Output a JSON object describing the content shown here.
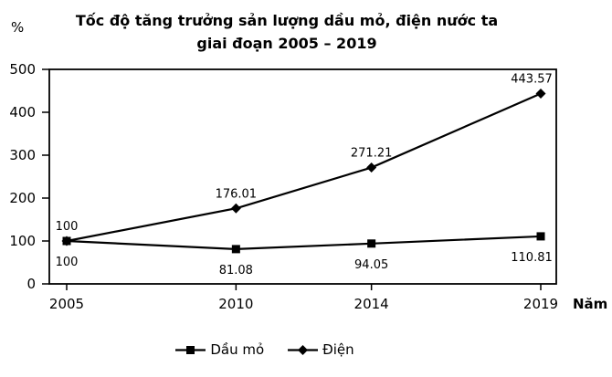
{
  "chart_data": {
    "type": "line",
    "title": "Tốc độ tăng trưởng sản lượng dầu mỏ, điện nước ta giai đoạn 2005 – 2019",
    "title_lines": [
      "Tốc độ tăng trưởng sản lượng dầu mỏ, điện nước ta",
      "giai đoạn 2005 – 2019"
    ],
    "y_axis_unit_label": "%",
    "x_axis_label": "Năm",
    "x": [
      2005,
      2010,
      2014,
      2019
    ],
    "ylim": [
      0,
      500
    ],
    "yticks": [
      0,
      100,
      200,
      300,
      400,
      500
    ],
    "grid": false,
    "legend_position": "bottom-center",
    "axis_color": "#000000",
    "series": [
      {
        "name": "Dầu mỏ",
        "marker": "square",
        "color": "#000000",
        "values": [
          100,
          81.08,
          94.05,
          110.81
        ],
        "data_labels": [
          "100",
          "81.08",
          "94.05",
          "110.81"
        ],
        "label_position": "below"
      },
      {
        "name": "Điện",
        "marker": "diamond",
        "color": "#000000",
        "values": [
          100,
          176.01,
          271.21,
          443.57
        ],
        "data_labels": [
          "100",
          "176.01",
          "271.21",
          "443.57"
        ],
        "label_position": "above"
      }
    ]
  }
}
